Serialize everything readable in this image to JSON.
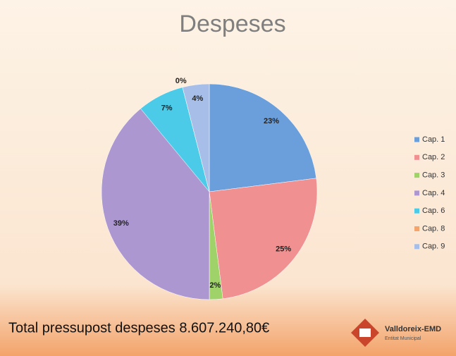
{
  "chart_data": {
    "type": "pie",
    "title": "Despeses",
    "categories": [
      "Cap. 1",
      "Cap. 2",
      "Cap. 3",
      "Cap. 4",
      "Cap. 6",
      "Cap. 8",
      "Cap. 9"
    ],
    "values": [
      23,
      25,
      2,
      39,
      7,
      0,
      4
    ],
    "value_labels": [
      "23%",
      "25%",
      "2%",
      "39%",
      "7%",
      "0%",
      "4%"
    ],
    "colors": [
      "#6b9fdb",
      "#f09090",
      "#9fd36a",
      "#ad97d1",
      "#4ccbe9",
      "#f5a46c",
      "#a7bfe8"
    ],
    "legend": "right",
    "annotation": "Total pressupost despeses 8.607.240,80€",
    "logo": {
      "name": "Valldoreix-EMD",
      "subtitle": "Entitat Municipal"
    }
  }
}
